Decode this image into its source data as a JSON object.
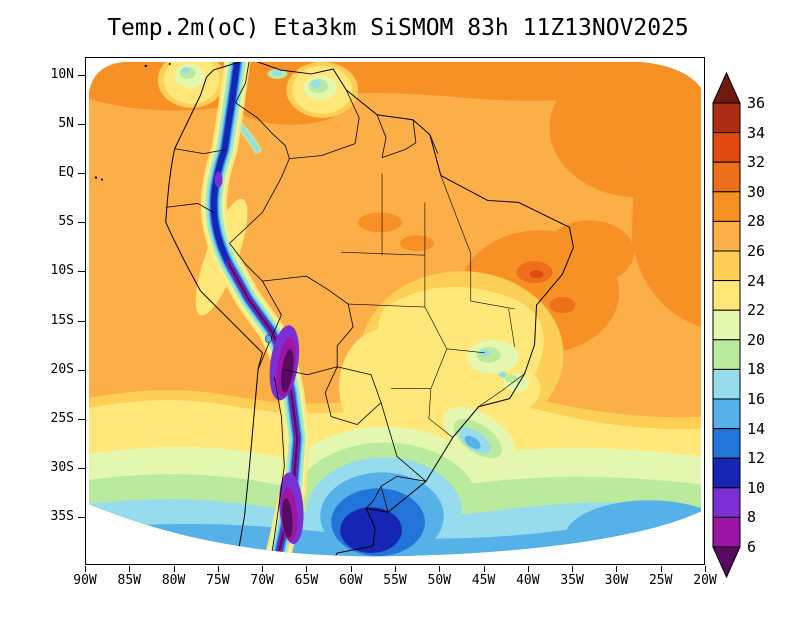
{
  "title": "Temp.2m(oC) Eta3km SiSMOM 83h 11Z13NOV2025",
  "forecast_info": {
    "variable": "Temp.2m",
    "units": "oC",
    "model": "Eta3km",
    "system": "SiSMOM",
    "forecast_hour": "83h",
    "valid_time": "11Z13NOV2025"
  },
  "axes": {
    "lat": [
      "10N",
      "5N",
      "EQ",
      "5S",
      "10S",
      "15S",
      "20S",
      "25S",
      "30S",
      "35S"
    ],
    "lon": [
      "90W",
      "85W",
      "80W",
      "75W",
      "70W",
      "65W",
      "60W",
      "55W",
      "50W",
      "45W",
      "40W",
      "35W",
      "30W",
      "25W",
      "20W"
    ]
  },
  "scale": {
    "units": "oC",
    "levels": [
      6,
      8,
      10,
      12,
      14,
      16,
      18,
      20,
      22,
      24,
      26,
      28,
      30,
      32,
      34,
      36
    ],
    "colors_low_to_high": [
      "#560b60",
      "#9c15a5",
      "#7c2fd2",
      "#1526b4",
      "#2274d8",
      "#55b1e8",
      "#96dcec",
      "#b9ea9e",
      "#e4f7ae",
      "#ffe879",
      "#fdcf56",
      "#fcae49",
      "#f79126",
      "#ee6f1a",
      "#e04a10",
      "#ad2d14",
      "#701a10"
    ]
  }
}
